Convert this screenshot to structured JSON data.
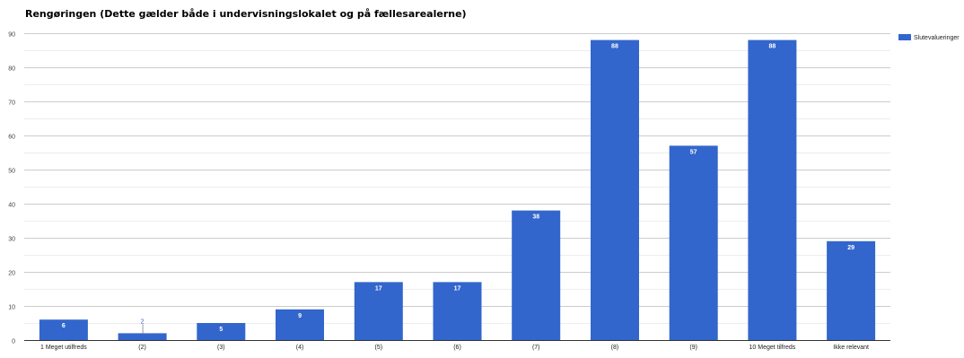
{
  "chart_data": {
    "type": "bar",
    "title": "Rengøringen (Dette gælder både i undervisningslokalet og på fællesarealerne)",
    "categories": [
      "1 Meget utilfreds",
      "(2)",
      "(3)",
      "(4)",
      "(5)",
      "(6)",
      "(7)",
      "(8)",
      "(9)",
      "10 Meget tilfreds",
      "Ikke relevant"
    ],
    "series": [
      {
        "name": "Slutevalueringer",
        "values": [
          6,
          2,
          5,
          9,
          17,
          17,
          38,
          88,
          57,
          88,
          29
        ]
      }
    ],
    "ylim": [
      0,
      90
    ],
    "yticks": [
      0,
      10,
      20,
      30,
      40,
      50,
      60,
      70,
      80,
      90
    ],
    "grid": true,
    "legend_position": "top-right",
    "bar_color": "#3366cc"
  }
}
